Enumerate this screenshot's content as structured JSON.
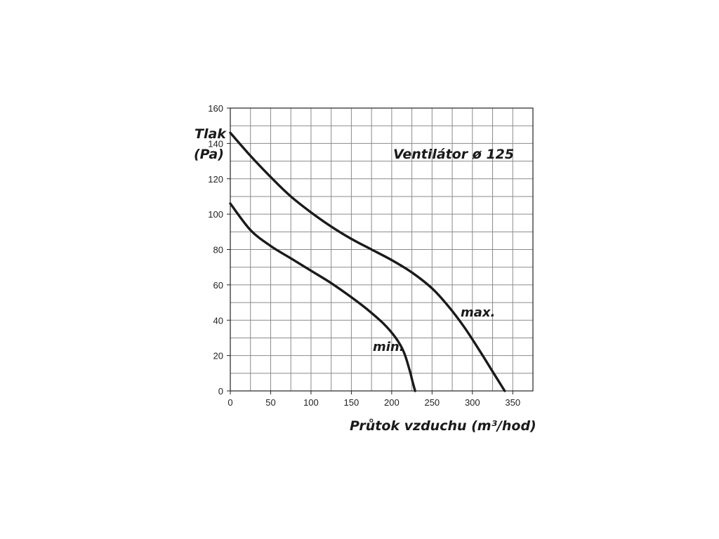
{
  "chart_data": {
    "type": "line",
    "title": "Ventilátor ø 125",
    "xlabel": "Průtok vzduchu (m³/hod)",
    "ylabel": "Tlak (Pa)",
    "ylabel_line1": "Tlak",
    "ylabel_line2": "(Pa)",
    "xlim": [
      0,
      375
    ],
    "ylim": [
      0,
      160
    ],
    "xticks": [
      0,
      50,
      100,
      150,
      200,
      250,
      300,
      350
    ],
    "yticks": [
      0,
      20,
      40,
      60,
      80,
      100,
      120,
      140,
      160
    ],
    "grid": true,
    "grid_x_step": 25,
    "grid_y_step": 10,
    "series": [
      {
        "name": "max.",
        "color": "#1a1a1a",
        "points": [
          [
            0,
            146
          ],
          [
            25,
            133
          ],
          [
            50,
            121
          ],
          [
            75,
            110
          ],
          [
            100,
            101
          ],
          [
            125,
            93
          ],
          [
            150,
            86
          ],
          [
            175,
            80
          ],
          [
            200,
            74
          ],
          [
            225,
            67
          ],
          [
            250,
            58
          ],
          [
            270,
            48
          ],
          [
            290,
            36
          ],
          [
            310,
            22
          ],
          [
            325,
            11
          ],
          [
            340,
            0
          ]
        ]
      },
      {
        "name": "min.",
        "color": "#1a1a1a",
        "points": [
          [
            0,
            106
          ],
          [
            25,
            91
          ],
          [
            50,
            82
          ],
          [
            75,
            75
          ],
          [
            100,
            68
          ],
          [
            125,
            61
          ],
          [
            150,
            53
          ],
          [
            170,
            46
          ],
          [
            190,
            38
          ],
          [
            205,
            30
          ],
          [
            215,
            22
          ],
          [
            222,
            12
          ],
          [
            226,
            5
          ],
          [
            229,
            0
          ]
        ]
      }
    ]
  }
}
